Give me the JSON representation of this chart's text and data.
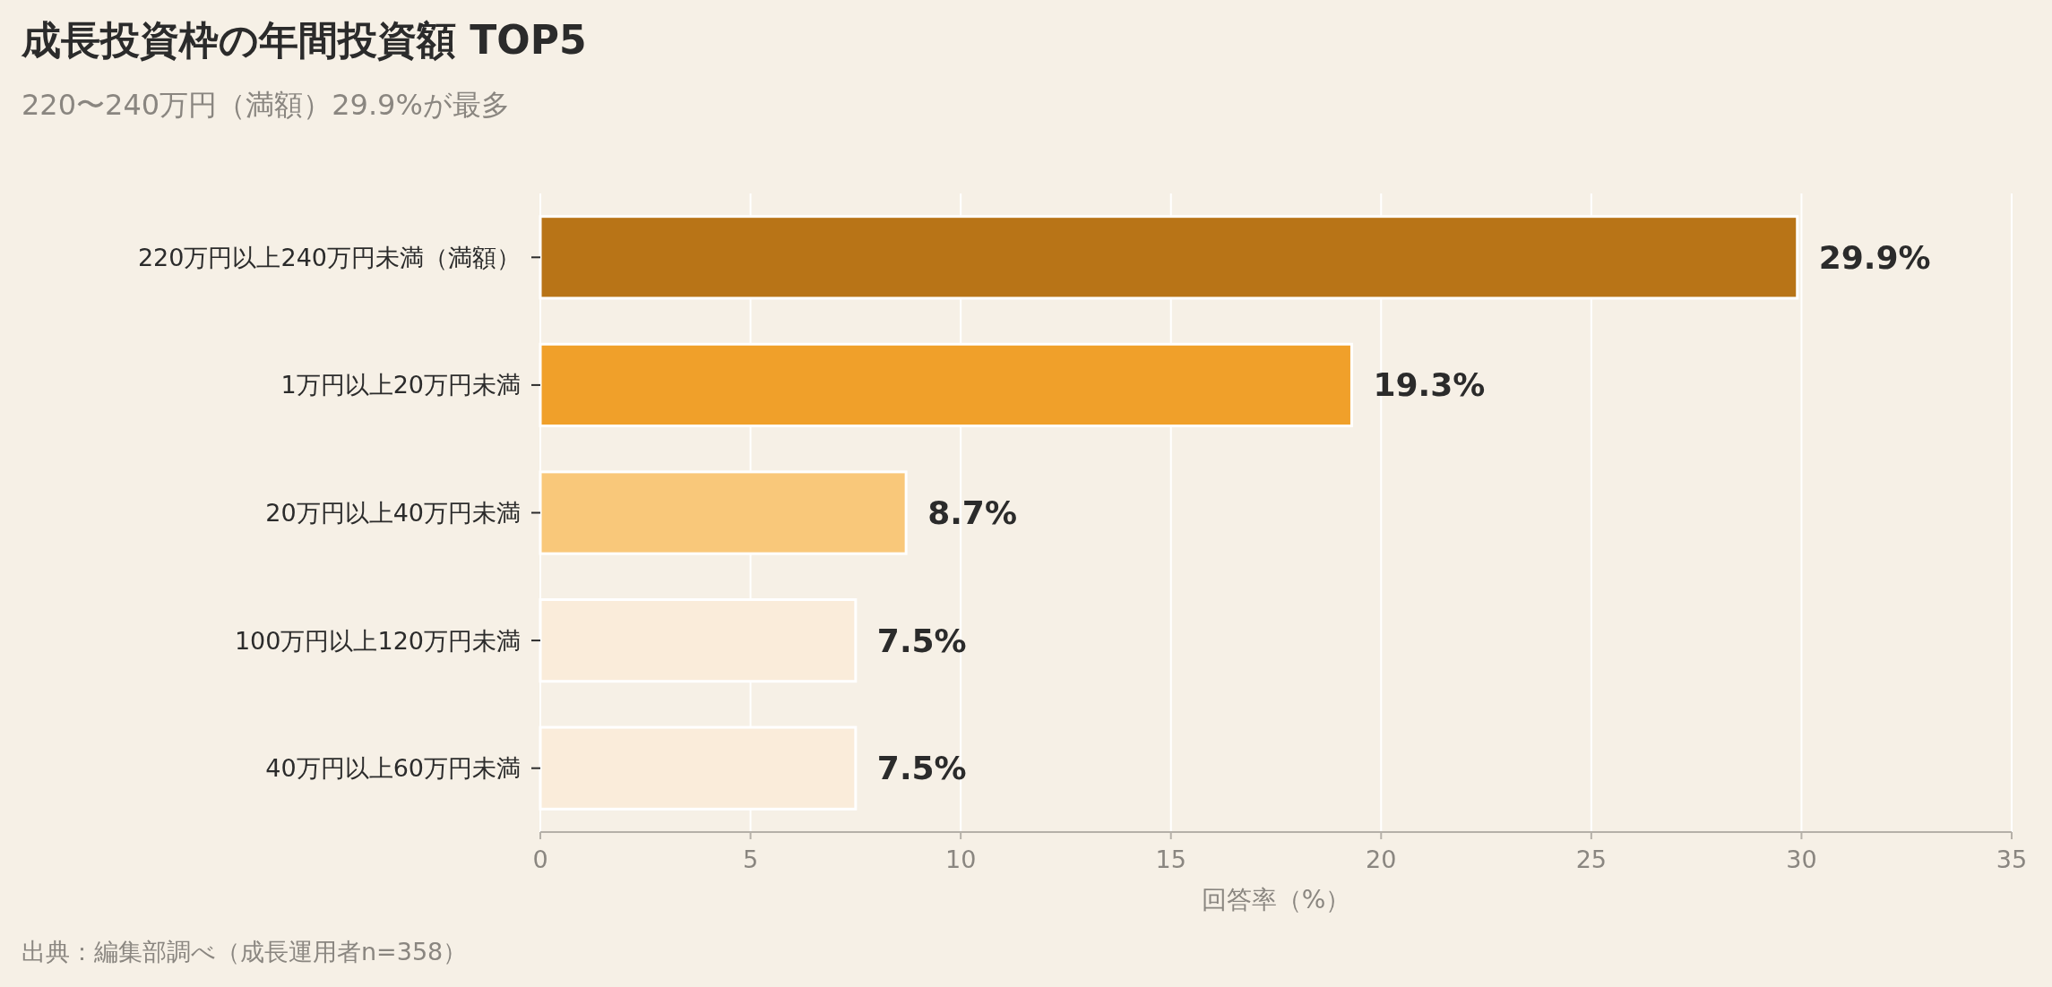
{
  "chart_data": {
    "type": "bar",
    "orientation": "horizontal",
    "title": "成長投資枠の年間投資額 TOP5",
    "subtitle": "220〜240万円（満額）29.9%が最多",
    "xlabel": "回答率（%）",
    "categories": [
      "220万円以上240万円未満（満額）",
      "1万円以上20万円未満",
      "20万円以上40万円未満",
      "100万円以上120万円未満",
      "40万円以上60万円未満"
    ],
    "values": [
      29.9,
      19.3,
      8.7,
      7.5,
      7.5
    ],
    "value_labels": [
      "29.9%",
      "19.3%",
      "8.7%",
      "7.5%",
      "7.5%"
    ],
    "colors": [
      "#b87417",
      "#f0a02a",
      "#f9c87a",
      "#faecda",
      "#faecda"
    ],
    "xlim": [
      0,
      35
    ],
    "xticks": [
      0,
      5,
      10,
      15,
      20,
      25,
      30,
      35
    ],
    "grid": "x",
    "annotations": [
      "出典：編集部調べ（成長運用者n=358）"
    ]
  }
}
